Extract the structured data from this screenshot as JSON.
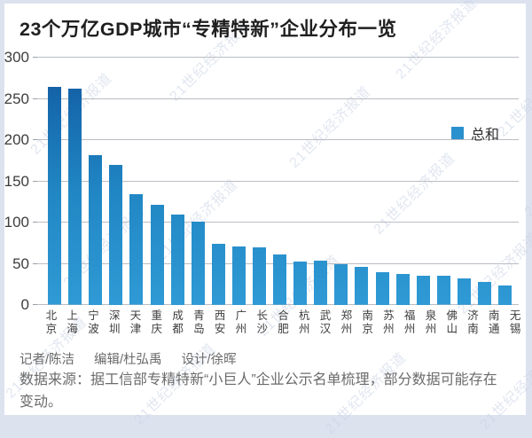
{
  "page": {
    "title": "23个万亿GDP城市“专精特新”企业分布一览",
    "watermark": "21世纪经济报道"
  },
  "chart_data": {
    "type": "bar",
    "title": "23个万亿GDP城市“专精特新”企业分布一览",
    "categories": [
      "北京",
      "上海",
      "宁波",
      "深圳",
      "天津",
      "重庆",
      "成都",
      "青岛",
      "西安",
      "广州",
      "长沙",
      "合肥",
      "杭州",
      "武汉",
      "郑州",
      "南京",
      "苏州",
      "福州",
      "泉州",
      "佛山",
      "济南",
      "南通",
      "无锡"
    ],
    "values": [
      264,
      262,
      182,
      170,
      134,
      122,
      110,
      101,
      74,
      71,
      70,
      61,
      53,
      54,
      50,
      46,
      40,
      38,
      36,
      35,
      32,
      28,
      24
    ],
    "series_name": "总和",
    "xlabel": "",
    "ylabel": "",
    "ylim": [
      0,
      300
    ],
    "yticks": [
      0,
      50,
      100,
      150,
      200,
      250,
      300
    ],
    "grid": true,
    "legend_position": "top-right",
    "bar_color_top": "#1568ac",
    "bar_color_bottom": "#2f9ad5",
    "gridline_color": "#b9bdc2"
  },
  "legend": {
    "label": "总和",
    "swatch_color": "#2b90ce"
  },
  "footer": {
    "credits": [
      "记者/陈洁",
      "编辑/杜弘禹",
      "设计/徐晖"
    ],
    "source": "数据来源：据工信部专精特新“小巨人”企业公示名单梳理，部分数据可能存在变动。"
  }
}
